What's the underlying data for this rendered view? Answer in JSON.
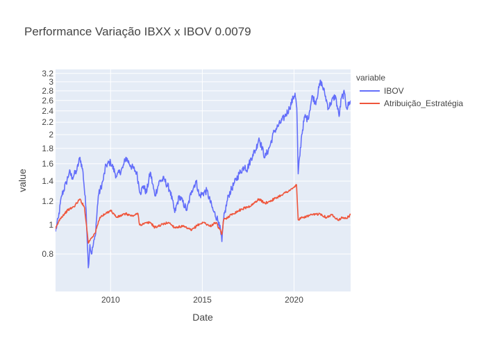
{
  "chart_data": {
    "type": "line",
    "title": "Performance Variação IBXX x IBOV 0.0079",
    "xlabel": "Date",
    "ylabel": "value",
    "x_scale": "date",
    "y_scale": "log",
    "xlim": [
      "2007-01-01",
      "2023-01-31"
    ],
    "ylim": [
      0.6,
      3.3
    ],
    "x_ticks": [
      {
        "value": "2010-01-01",
        "label": "2010"
      },
      {
        "value": "2015-01-01",
        "label": "2015"
      },
      {
        "value": "2020-01-01",
        "label": "2020"
      }
    ],
    "y_ticks": [
      {
        "value": 0.8,
        "label": "0.8"
      },
      {
        "value": 1.0,
        "label": "1"
      },
      {
        "value": 1.2,
        "label": "1.2"
      },
      {
        "value": 1.4,
        "label": "1.4"
      },
      {
        "value": 1.6,
        "label": "1.6"
      },
      {
        "value": 1.8,
        "label": "1.8"
      },
      {
        "value": 2.0,
        "label": "2"
      },
      {
        "value": 2.2,
        "label": "2.2"
      },
      {
        "value": 2.4,
        "label": "2.4"
      },
      {
        "value": 2.6,
        "label": "2.6"
      },
      {
        "value": 2.8,
        "label": "2.8"
      },
      {
        "value": 3.0,
        "label": "3"
      },
      {
        "value": 3.2,
        "label": "3.2"
      }
    ],
    "grid": true,
    "legend": {
      "title": "variable",
      "placement": "top-right"
    },
    "series": [
      {
        "name": "IBOV",
        "color": "#636efa",
        "points": [
          [
            "2007-01-01",
            0.95
          ],
          [
            "2007-03-01",
            1.06
          ],
          [
            "2007-05-01",
            1.25
          ],
          [
            "2007-08-01",
            1.38
          ],
          [
            "2007-10-01",
            1.5
          ],
          [
            "2007-12-01",
            1.44
          ],
          [
            "2008-03-01",
            1.52
          ],
          [
            "2008-05-01",
            1.68
          ],
          [
            "2008-07-01",
            1.5
          ],
          [
            "2008-09-01",
            1.12
          ],
          [
            "2008-10-15",
            0.72
          ],
          [
            "2008-11-15",
            0.86
          ],
          [
            "2008-12-15",
            0.8
          ],
          [
            "2009-03-01",
            0.92
          ],
          [
            "2009-05-01",
            1.25
          ],
          [
            "2009-08-01",
            1.4
          ],
          [
            "2009-10-01",
            1.58
          ],
          [
            "2010-01-01",
            1.62
          ],
          [
            "2010-05-01",
            1.45
          ],
          [
            "2010-09-01",
            1.55
          ],
          [
            "2010-11-01",
            1.68
          ],
          [
            "2011-02-01",
            1.58
          ],
          [
            "2011-06-01",
            1.5
          ],
          [
            "2011-08-15",
            1.28
          ],
          [
            "2011-10-15",
            1.35
          ],
          [
            "2011-12-15",
            1.28
          ],
          [
            "2012-03-01",
            1.5
          ],
          [
            "2012-06-01",
            1.25
          ],
          [
            "2012-09-01",
            1.4
          ],
          [
            "2012-12-01",
            1.42
          ],
          [
            "2013-04-01",
            1.3
          ],
          [
            "2013-07-01",
            1.1
          ],
          [
            "2013-10-01",
            1.25
          ],
          [
            "2014-03-01",
            1.12
          ],
          [
            "2014-06-01",
            1.3
          ],
          [
            "2014-09-01",
            1.4
          ],
          [
            "2014-11-01",
            1.25
          ],
          [
            "2015-04-01",
            1.3
          ],
          [
            "2015-08-01",
            1.12
          ],
          [
            "2015-12-01",
            1.02
          ],
          [
            "2016-01-25",
            0.88
          ],
          [
            "2016-03-01",
            1.05
          ],
          [
            "2016-06-01",
            1.25
          ],
          [
            "2016-10-01",
            1.38
          ],
          [
            "2017-01-01",
            1.48
          ],
          [
            "2017-05-01",
            1.58
          ],
          [
            "2017-06-01",
            1.52
          ],
          [
            "2017-10-01",
            1.72
          ],
          [
            "2017-12-01",
            1.78
          ],
          [
            "2018-02-01",
            1.95
          ],
          [
            "2018-06-01",
            1.68
          ],
          [
            "2018-09-01",
            1.82
          ],
          [
            "2018-12-01",
            2.05
          ],
          [
            "2019-03-01",
            2.15
          ],
          [
            "2019-07-01",
            2.3
          ],
          [
            "2019-10-01",
            2.45
          ],
          [
            "2020-01-20",
            2.75
          ],
          [
            "2020-02-25",
            2.45
          ],
          [
            "2020-03-23",
            1.48
          ],
          [
            "2020-06-01",
            2.0
          ],
          [
            "2020-08-01",
            2.3
          ],
          [
            "2020-10-01",
            2.25
          ],
          [
            "2021-01-01",
            2.7
          ],
          [
            "2021-03-01",
            2.55
          ],
          [
            "2021-06-15",
            3.02
          ],
          [
            "2021-09-01",
            2.75
          ],
          [
            "2021-11-15",
            2.45
          ],
          [
            "2022-01-01",
            2.55
          ],
          [
            "2022-04-01",
            2.7
          ],
          [
            "2022-06-15",
            2.3
          ],
          [
            "2022-08-01",
            2.65
          ],
          [
            "2022-10-01",
            2.75
          ],
          [
            "2022-11-15",
            2.45
          ],
          [
            "2023-01-31",
            2.6
          ]
        ]
      },
      {
        "name": "Atribuição_Estratégia",
        "color": "#ef553b",
        "points": [
          [
            "2007-01-01",
            0.97
          ],
          [
            "2007-04-01",
            1.05
          ],
          [
            "2007-09-01",
            1.12
          ],
          [
            "2008-01-01",
            1.15
          ],
          [
            "2008-05-01",
            1.22
          ],
          [
            "2008-08-01",
            1.14
          ],
          [
            "2008-10-15",
            0.87
          ],
          [
            "2008-12-01",
            0.9
          ],
          [
            "2009-03-01",
            0.94
          ],
          [
            "2009-06-01",
            1.06
          ],
          [
            "2009-10-01",
            1.09
          ],
          [
            "2010-01-01",
            1.12
          ],
          [
            "2010-05-01",
            1.06
          ],
          [
            "2010-11-01",
            1.09
          ],
          [
            "2011-03-01",
            1.07
          ],
          [
            "2011-07-01",
            1.09
          ],
          [
            "2011-08-01",
            1.0
          ],
          [
            "2011-11-01",
            1.01
          ],
          [
            "2012-03-01",
            1.02
          ],
          [
            "2012-06-01",
            0.98
          ],
          [
            "2012-10-01",
            1.0
          ],
          [
            "2013-03-01",
            1.02
          ],
          [
            "2013-07-01",
            0.98
          ],
          [
            "2013-12-01",
            0.99
          ],
          [
            "2014-06-01",
            0.96
          ],
          [
            "2014-10-01",
            1.0
          ],
          [
            "2015-02-01",
            1.02
          ],
          [
            "2015-06-01",
            0.99
          ],
          [
            "2015-10-01",
            1.02
          ],
          [
            "2016-01-25",
            0.93
          ],
          [
            "2016-03-01",
            1.04
          ],
          [
            "2016-09-01",
            1.09
          ],
          [
            "2017-03-01",
            1.13
          ],
          [
            "2017-09-01",
            1.16
          ],
          [
            "2018-02-01",
            1.22
          ],
          [
            "2018-06-01",
            1.18
          ],
          [
            "2018-12-01",
            1.22
          ],
          [
            "2019-06-01",
            1.27
          ],
          [
            "2019-12-01",
            1.32
          ],
          [
            "2020-02-20",
            1.36
          ],
          [
            "2020-03-23",
            1.04
          ],
          [
            "2020-07-01",
            1.06
          ],
          [
            "2021-01-01",
            1.08
          ],
          [
            "2021-06-01",
            1.09
          ],
          [
            "2021-10-01",
            1.06
          ],
          [
            "2022-02-01",
            1.08
          ],
          [
            "2022-06-01",
            1.04
          ],
          [
            "2022-09-01",
            1.06
          ],
          [
            "2022-11-01",
            1.05
          ],
          [
            "2023-01-31",
            1.08
          ]
        ]
      }
    ]
  }
}
